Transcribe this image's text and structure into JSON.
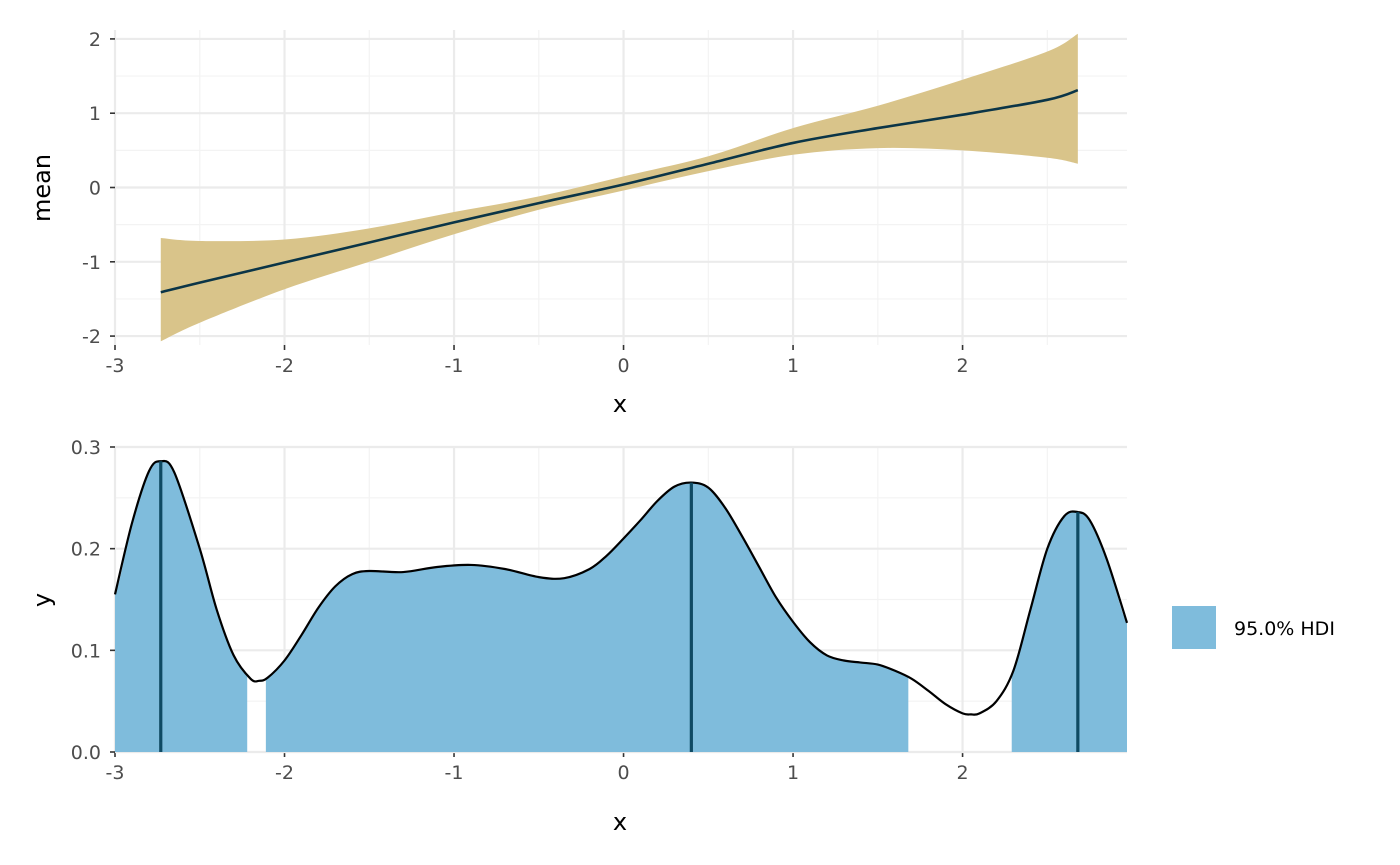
{
  "chart_data": [
    {
      "type": "area",
      "title": "",
      "xlabel": "x",
      "ylabel": "mean",
      "xlim": [
        -3,
        2.97
      ],
      "ylim": [
        -2.12,
        2.12
      ],
      "x_ticks": [
        -3,
        -2,
        -1,
        0,
        1,
        2
      ],
      "x_tick_labels": [
        "-3",
        "-2",
        "-1",
        "0",
        "1",
        "2"
      ],
      "y_ticks": [
        -2,
        -1,
        0,
        1,
        2
      ],
      "y_tick_labels": [
        "-2",
        "-1",
        "0",
        "1",
        "2"
      ],
      "grid": true,
      "colors": {
        "ribbon": "#d9c48a",
        "line": "#0b3547"
      },
      "series": [
        {
          "x": [
            -2.73,
            -2.5,
            -2.0,
            -1.5,
            -1.0,
            -0.5,
            0.0,
            0.5,
            1.0,
            1.5,
            2.0,
            2.5,
            2.68
          ],
          "mean": [
            -1.41,
            -1.28,
            -1.01,
            -0.74,
            -0.47,
            -0.21,
            0.04,
            0.32,
            0.6,
            0.8,
            0.98,
            1.18,
            1.31
          ],
          "lower": [
            -2.07,
            -1.82,
            -1.37,
            -1.0,
            -0.63,
            -0.3,
            -0.04,
            0.22,
            0.44,
            0.53,
            0.5,
            0.4,
            0.32
          ],
          "upper": [
            -0.68,
            -0.72,
            -0.7,
            -0.55,
            -0.33,
            -0.12,
            0.15,
            0.42,
            0.8,
            1.1,
            1.45,
            1.83,
            2.07
          ]
        }
      ]
    },
    {
      "type": "area",
      "title": "",
      "xlabel": "x",
      "ylabel": "y",
      "xlim": [
        -3,
        2.97
      ],
      "ylim": [
        0,
        0.3
      ],
      "x_ticks": [
        -3,
        -2,
        -1,
        0,
        1,
        2
      ],
      "x_tick_labels": [
        "-3",
        "-2",
        "-1",
        "0",
        "1",
        "2"
      ],
      "y_ticks": [
        0.0,
        0.1,
        0.2,
        0.3
      ],
      "y_tick_labels": [
        "0.0",
        "0.1",
        "0.2",
        "0.3"
      ],
      "grid": true,
      "legend_position": "right",
      "legend": [
        {
          "label": "95.0% HDI",
          "color": "#7fbcdc"
        }
      ],
      "colors": {
        "fill": "#7fbcdc",
        "curve": "#000000",
        "marker": "#0f4a63"
      },
      "density": {
        "x": [
          -3.0,
          -2.9,
          -2.8,
          -2.73,
          -2.65,
          -2.5,
          -2.4,
          -2.3,
          -2.2,
          -2.15,
          -2.1,
          -2.0,
          -1.9,
          -1.8,
          -1.7,
          -1.6,
          -1.5,
          -1.3,
          -1.1,
          -0.9,
          -0.7,
          -0.5,
          -0.35,
          -0.2,
          -0.1,
          0.0,
          0.1,
          0.2,
          0.3,
          0.4,
          0.5,
          0.6,
          0.7,
          0.8,
          0.9,
          1.0,
          1.1,
          1.2,
          1.3,
          1.4,
          1.5,
          1.6,
          1.7,
          1.8,
          1.9,
          2.0,
          2.05,
          2.1,
          2.2,
          2.3,
          2.4,
          2.5,
          2.6,
          2.68,
          2.75,
          2.85,
          2.97
        ],
        "y": [
          0.155,
          0.225,
          0.276,
          0.286,
          0.275,
          0.2,
          0.14,
          0.095,
          0.072,
          0.07,
          0.073,
          0.09,
          0.115,
          0.142,
          0.163,
          0.175,
          0.178,
          0.177,
          0.182,
          0.184,
          0.18,
          0.172,
          0.171,
          0.18,
          0.193,
          0.21,
          0.228,
          0.247,
          0.261,
          0.265,
          0.26,
          0.24,
          0.212,
          0.182,
          0.152,
          0.128,
          0.108,
          0.095,
          0.09,
          0.088,
          0.086,
          0.08,
          0.072,
          0.06,
          0.047,
          0.038,
          0.037,
          0.038,
          0.05,
          0.08,
          0.14,
          0.2,
          0.232,
          0.236,
          0.228,
          0.19,
          0.127
        ]
      },
      "hdi_intervals": [
        [
          -3.0,
          -2.22
        ],
        [
          -2.11,
          1.68
        ],
        [
          2.29,
          2.97
        ]
      ],
      "mode_lines": [
        -2.73,
        0.4,
        2.68
      ]
    }
  ]
}
